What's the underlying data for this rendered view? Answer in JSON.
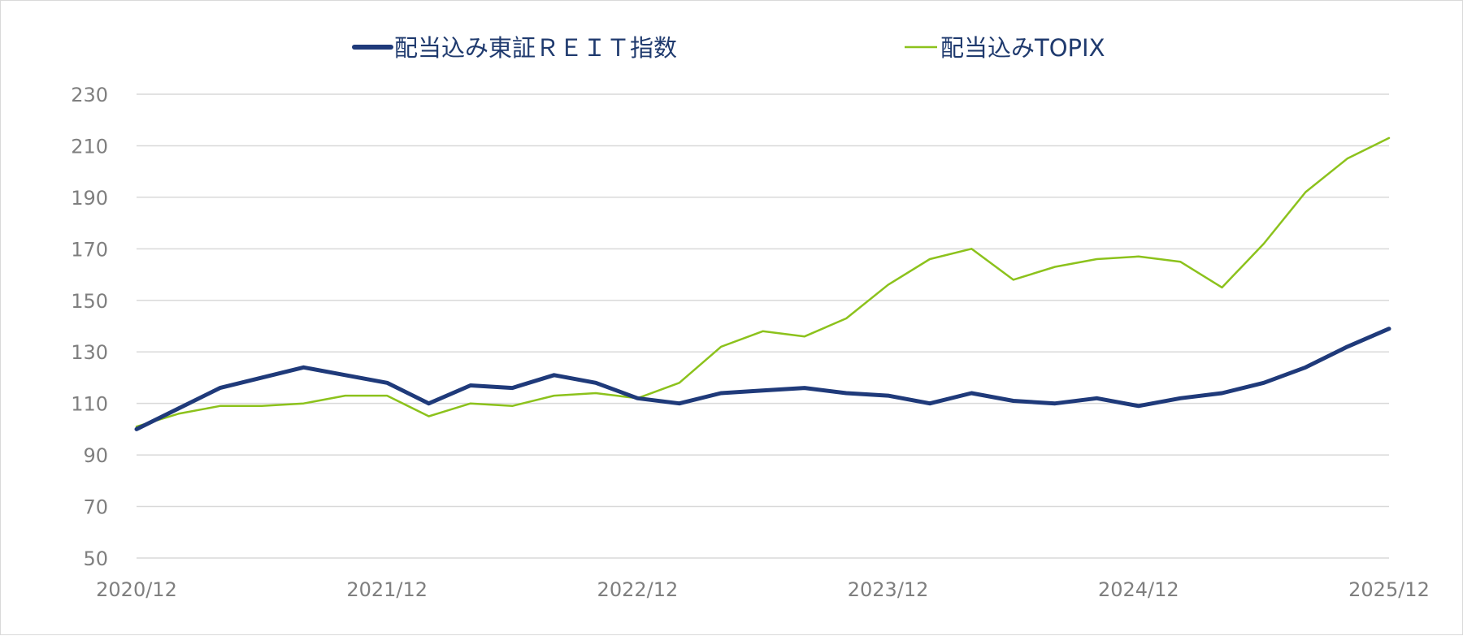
{
  "chart_data": {
    "type": "line",
    "title": "",
    "xlabel": "",
    "ylabel": "",
    "xlim": [
      "2020/12",
      "2025/12"
    ],
    "ylim": [
      50,
      230
    ],
    "yticks": [
      50,
      70,
      90,
      110,
      130,
      150,
      170,
      190,
      210,
      230
    ],
    "xticks": [
      "2020/12",
      "2021/12",
      "2022/12",
      "2023/12",
      "2024/12",
      "2025/12"
    ],
    "grid": "horizontal",
    "legend_position": "top-center",
    "series": [
      {
        "name": "配当込み東証ＲＥＩＴ指数",
        "color": "#1f3a7a",
        "x": [
          "2020/12",
          "2021/02",
          "2021/04",
          "2021/06",
          "2021/08",
          "2021/10",
          "2021/12",
          "2022/02",
          "2022/04",
          "2022/06",
          "2022/08",
          "2022/10",
          "2022/12",
          "2023/02",
          "2023/04",
          "2023/06",
          "2023/08",
          "2023/10",
          "2023/12",
          "2024/02",
          "2024/04",
          "2024/06",
          "2024/08",
          "2024/10",
          "2024/12",
          "2025/02",
          "2025/04",
          "2025/06",
          "2025/08",
          "2025/10",
          "2025/12"
        ],
        "values": [
          100,
          108,
          116,
          120,
          124,
          121,
          118,
          110,
          117,
          116,
          121,
          118,
          112,
          110,
          114,
          115,
          116,
          114,
          113,
          110,
          114,
          111,
          110,
          112,
          109,
          112,
          114,
          118,
          124,
          132,
          139
        ]
      },
      {
        "name": "配当込みTOPIX",
        "color": "#8cc21c",
        "x": [
          "2020/12",
          "2021/02",
          "2021/04",
          "2021/06",
          "2021/08",
          "2021/10",
          "2021/12",
          "2022/02",
          "2022/04",
          "2022/06",
          "2022/08",
          "2022/10",
          "2022/12",
          "2023/02",
          "2023/04",
          "2023/06",
          "2023/08",
          "2023/10",
          "2023/12",
          "2024/02",
          "2024/04",
          "2024/06",
          "2024/08",
          "2024/10",
          "2024/12",
          "2025/02",
          "2025/04",
          "2025/06",
          "2025/08",
          "2025/10",
          "2025/12"
        ],
        "values": [
          101,
          106,
          109,
          109,
          110,
          113,
          113,
          105,
          110,
          109,
          113,
          114,
          112,
          118,
          132,
          138,
          136,
          143,
          156,
          166,
          170,
          158,
          163,
          166,
          167,
          165,
          155,
          172,
          192,
          205,
          213
        ]
      }
    ]
  }
}
